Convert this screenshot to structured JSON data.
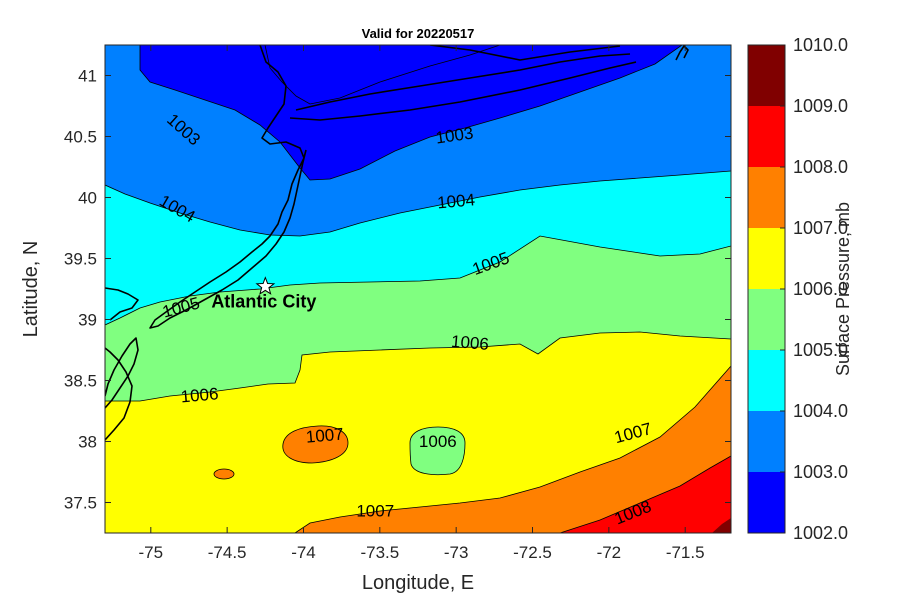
{
  "chart_data": {
    "type": "filled-contour",
    "title": "Valid for 20220517",
    "xlabel": "Longitude, E",
    "ylabel": "Latitude, N",
    "xlim": [
      -75.3,
      -71.2
    ],
    "ylim": [
      37.25,
      41.25
    ],
    "xticks": [
      {
        "value": -75,
        "label": "-75"
      },
      {
        "value": -74.5,
        "label": "-74.5"
      },
      {
        "value": -74,
        "label": "-74"
      },
      {
        "value": -73.5,
        "label": "-73.5"
      },
      {
        "value": -73,
        "label": "-73"
      },
      {
        "value": -72.5,
        "label": "-72.5"
      },
      {
        "value": -72,
        "label": "-72"
      },
      {
        "value": -71.5,
        "label": "-71.5"
      }
    ],
    "yticks": [
      {
        "value": 37.5,
        "label": "37.5"
      },
      {
        "value": 38,
        "label": "38"
      },
      {
        "value": 38.5,
        "label": "38.5"
      },
      {
        "value": 39,
        "label": "39"
      },
      {
        "value": 39.5,
        "label": "39.5"
      },
      {
        "value": 40,
        "label": "40"
      },
      {
        "value": 40.5,
        "label": "40.5"
      },
      {
        "value": 41,
        "label": "41"
      }
    ],
    "colorbar": {
      "label": "Surface Pressure, mb",
      "range": [
        1002,
        1010
      ],
      "ticks": [
        "1002.0",
        "1003.0",
        "1004.0",
        "1005.0",
        "1006.0",
        "1007.0",
        "1008.0",
        "1009.0",
        "1010.0"
      ],
      "colors": [
        "#0000ff",
        "#0080ff",
        "#00ffff",
        "#80ff80",
        "#ffff00",
        "#ff8000",
        "#ff0000",
        "#800000"
      ]
    },
    "contour_levels": [
      1003,
      1004,
      1005,
      1006,
      1007,
      1008
    ],
    "contour_labels": [
      {
        "text": "1003",
        "lon": -74.79,
        "lat": 40.55,
        "angle": 42
      },
      {
        "text": "1003",
        "lon": -73.01,
        "lat": 40.5,
        "angle": -8
      },
      {
        "text": "1004",
        "lon": -74.83,
        "lat": 39.9,
        "angle": 30
      },
      {
        "text": "1004",
        "lon": -73.0,
        "lat": 39.96,
        "angle": -5
      },
      {
        "text": "1005",
        "lon": -72.77,
        "lat": 39.45,
        "angle": -20
      },
      {
        "text": "1005",
        "lon": -74.8,
        "lat": 39.09,
        "angle": -15
      },
      {
        "text": "1006",
        "lon": -72.91,
        "lat": 38.8,
        "angle": 5
      },
      {
        "text": "1006",
        "lon": -74.68,
        "lat": 38.37,
        "angle": -5
      },
      {
        "text": "1006",
        "lon": -73.12,
        "lat": 37.99,
        "angle": 0
      },
      {
        "text": "1007",
        "lon": -73.86,
        "lat": 38.04,
        "angle": -5
      },
      {
        "text": "1007",
        "lon": -73.53,
        "lat": 37.42,
        "angle": 0
      },
      {
        "text": "1007",
        "lon": -71.84,
        "lat": 38.06,
        "angle": -15
      },
      {
        "text": "1008",
        "lon": -71.84,
        "lat": 37.41,
        "angle": -22
      }
    ],
    "marker": {
      "label": "Atlantic City",
      "lon": -74.25,
      "lat": 39.27,
      "symbol": "star"
    },
    "grid": false
  }
}
